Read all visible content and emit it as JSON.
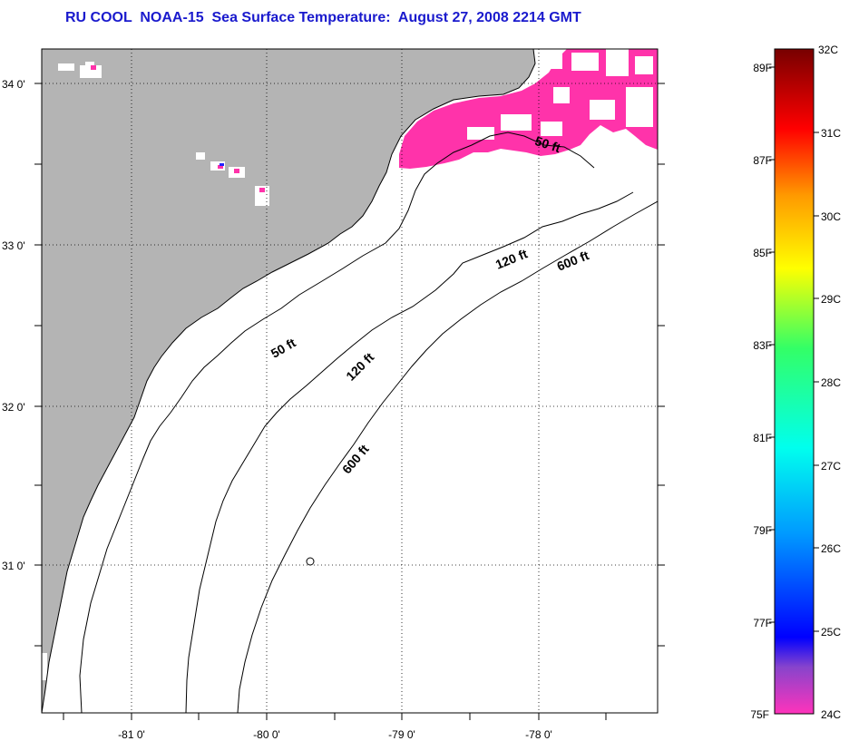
{
  "title": "RU COOL  NOAA-15  Sea Surface Temperature:  August 27, 2008 2214 GMT",
  "map": {
    "lat_labels": [
      "34 0'",
      "33 0'",
      "32 0'",
      "31 0'"
    ],
    "lon_labels": [
      "-81 0'",
      "-80 0'",
      "-79 0'",
      "-78 0'"
    ],
    "contours": [
      "50 ft",
      "120 ft",
      "600 ft",
      "50 ft",
      "120 ft",
      "600 ft"
    ],
    "land_color": "#b4b4b4",
    "sst_color": "#ff33aa"
  },
  "colorbar": {
    "fahrenheit": [
      "89F",
      "87F",
      "85F",
      "83F",
      "81F",
      "79F",
      "77F",
      "75F"
    ],
    "celsius": [
      "32C",
      "31C",
      "30C",
      "29C",
      "28C",
      "27C",
      "26C",
      "25C",
      "24C"
    ]
  }
}
